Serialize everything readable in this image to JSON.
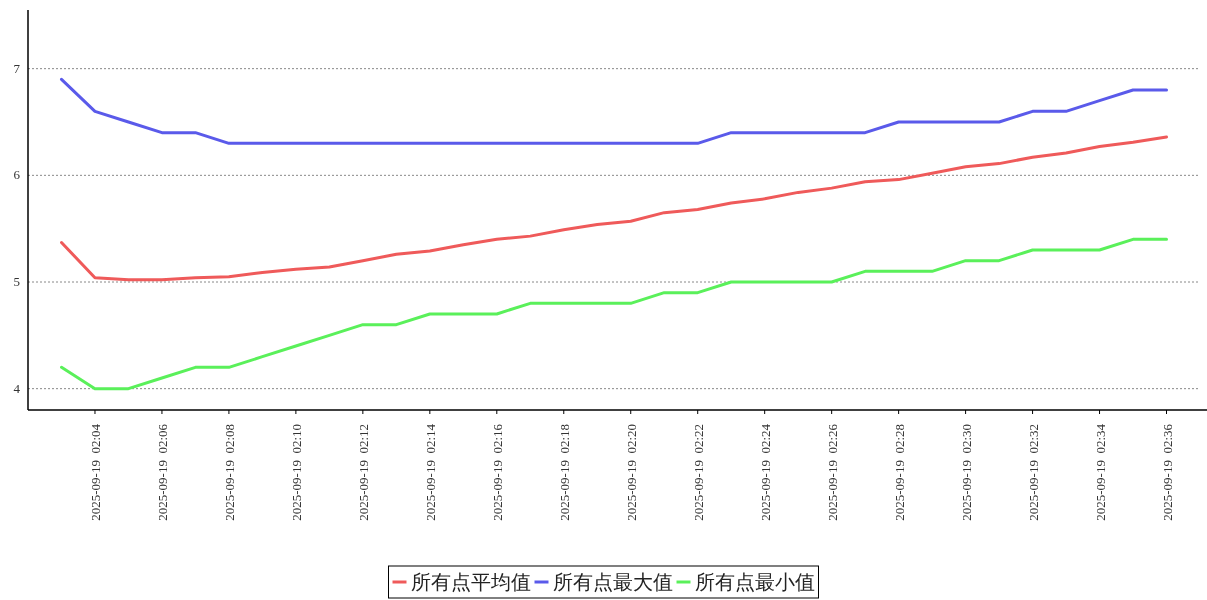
{
  "chart_data": {
    "type": "line",
    "x": [
      "2025-09-19T02:03",
      "2025-09-19T02:04",
      "2025-09-19T02:05",
      "2025-09-19T02:06",
      "2025-09-19T02:07",
      "2025-09-19T02:08",
      "2025-09-19T02:09",
      "2025-09-19T02:10",
      "2025-09-19T02:11",
      "2025-09-19T02:12",
      "2025-09-19T02:13",
      "2025-09-19T02:14",
      "2025-09-19T02:15",
      "2025-09-19T02:16",
      "2025-09-19T02:17",
      "2025-09-19T02:18",
      "2025-09-19T02:19",
      "2025-09-19T02:20",
      "2025-09-19T02:21",
      "2025-09-19T02:22",
      "2025-09-19T02:23",
      "2025-09-19T02:24",
      "2025-09-19T02:25",
      "2025-09-19T02:26",
      "2025-09-19T02:27",
      "2025-09-19T02:28",
      "2025-09-19T02:29",
      "2025-09-19T02:30",
      "2025-09-19T02:31",
      "2025-09-19T02:32",
      "2025-09-19T02:33",
      "2025-09-19T02:34",
      "2025-09-19T02:35",
      "2025-09-19T02:36"
    ],
    "series": [
      {
        "name": "所有点平均值",
        "color": "#ef5a5a",
        "values": [
          5.37,
          5.04,
          5.02,
          5.02,
          5.04,
          5.05,
          5.09,
          5.12,
          5.14,
          5.2,
          5.26,
          5.29,
          5.35,
          5.4,
          5.43,
          5.49,
          5.54,
          5.57,
          5.65,
          5.68,
          5.74,
          5.78,
          5.84,
          5.88,
          5.94,
          5.96,
          6.02,
          6.08,
          6.11,
          6.17,
          6.21,
          6.27,
          6.31,
          6.36
        ]
      },
      {
        "name": "所有点最大值",
        "color": "#5a5aea",
        "values": [
          6.9,
          6.6,
          6.5,
          6.4,
          6.4,
          6.3,
          6.3,
          6.3,
          6.3,
          6.3,
          6.3,
          6.3,
          6.3,
          6.3,
          6.3,
          6.3,
          6.3,
          6.3,
          6.3,
          6.3,
          6.4,
          6.4,
          6.4,
          6.4,
          6.4,
          6.5,
          6.5,
          6.5,
          6.5,
          6.6,
          6.6,
          6.7,
          6.8,
          6.8
        ]
      },
      {
        "name": "所有点最小值",
        "color": "#5af05a",
        "values": [
          4.2,
          4.0,
          4.0,
          4.1,
          4.2,
          4.2,
          4.3,
          4.4,
          4.5,
          4.6,
          4.6,
          4.7,
          4.7,
          4.7,
          4.8,
          4.8,
          4.8,
          4.8,
          4.9,
          4.9,
          5.0,
          5.0,
          5.0,
          5.0,
          5.1,
          5.1,
          5.1,
          5.2,
          5.2,
          5.3,
          5.3,
          5.3,
          5.4,
          5.4
        ]
      }
    ],
    "xlim": [
      "2025-09-19T02:02",
      "2025-09-19T02:37"
    ],
    "xticks": [
      {
        "value": "2025-09-19T02:04",
        "label": "2025-09-19  02:04"
      },
      {
        "value": "2025-09-19T02:06",
        "label": "2025-09-19  02:06"
      },
      {
        "value": "2025-09-19T02:08",
        "label": "2025-09-19  02:08"
      },
      {
        "value": "2025-09-19T02:10",
        "label": "2025-09-19  02:10"
      },
      {
        "value": "2025-09-19T02:12",
        "label": "2025-09-19  02:12"
      },
      {
        "value": "2025-09-19T02:14",
        "label": "2025-09-19  02:14"
      },
      {
        "value": "2025-09-19T02:16",
        "label": "2025-09-19  02:16"
      },
      {
        "value": "2025-09-19T02:18",
        "label": "2025-09-19  02:18"
      },
      {
        "value": "2025-09-19T02:20",
        "label": "2025-09-19  02:20"
      },
      {
        "value": "2025-09-19T02:22",
        "label": "2025-09-19  02:22"
      },
      {
        "value": "2025-09-19T02:24",
        "label": "2025-09-19  02:24"
      },
      {
        "value": "2025-09-19T02:26",
        "label": "2025-09-19  02:26"
      },
      {
        "value": "2025-09-19T02:28",
        "label": "2025-09-19  02:28"
      },
      {
        "value": "2025-09-19T02:30",
        "label": "2025-09-19  02:30"
      },
      {
        "value": "2025-09-19T02:32",
        "label": "2025-09-19  02:32"
      },
      {
        "value": "2025-09-19T02:34",
        "label": "2025-09-19  02:34"
      },
      {
        "value": "2025-09-19T02:36",
        "label": "2025-09-19  02:36"
      }
    ],
    "ylim": [
      3.8,
      7.55
    ],
    "yticks": [
      4,
      5,
      6,
      7
    ],
    "grid": "y",
    "legend": "bottom",
    "marker": "none",
    "line_style": "solid"
  }
}
